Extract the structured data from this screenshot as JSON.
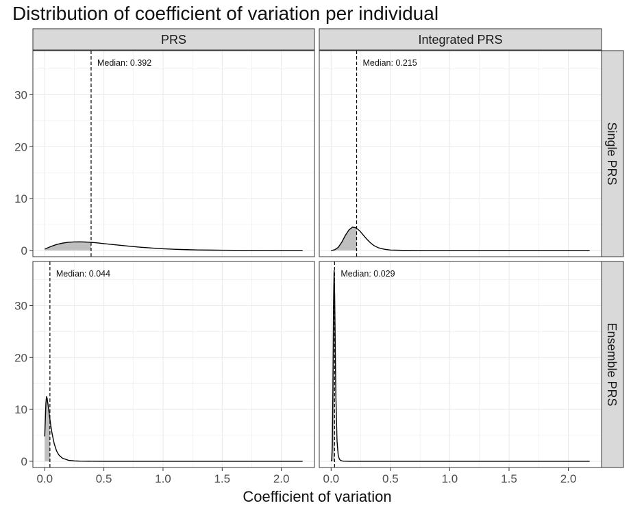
{
  "chart_data": {
    "type": "area",
    "title": "Distribution of coefficient of variation per individual",
    "xlabel": "Coefficient of variation",
    "ylabel": "",
    "xlim": [
      -0.1,
      2.28
    ],
    "ylim": [
      -1.2,
      38.5
    ],
    "x_ticks": [
      0.0,
      0.5,
      1.0,
      1.5,
      2.0
    ],
    "x_tick_labels": [
      "0.0",
      "0.5",
      "1.0",
      "1.5",
      "2.0"
    ],
    "y_ticks": [
      0,
      10,
      20,
      30
    ],
    "y_tick_labels": [
      "0",
      "10",
      "20",
      "30"
    ],
    "column_strips": [
      "PRS",
      "Integrated PRS"
    ],
    "row_strips": [
      "Single PRS",
      "Ensemble PRS"
    ],
    "panels": [
      {
        "column": "PRS",
        "row": "Single PRS",
        "median": 0.392,
        "annotation": "Median: 0.392",
        "x": [
          0.0,
          0.05,
          0.1,
          0.15,
          0.2,
          0.25,
          0.3,
          0.35,
          0.4,
          0.45,
          0.5,
          0.6,
          0.7,
          0.8,
          0.9,
          1.0,
          1.1,
          1.2,
          1.3,
          1.4,
          1.5,
          1.6,
          1.8,
          2.0,
          2.18
        ],
        "density": [
          0.25,
          0.75,
          1.15,
          1.42,
          1.58,
          1.65,
          1.66,
          1.62,
          1.54,
          1.44,
          1.32,
          1.08,
          0.85,
          0.64,
          0.47,
          0.33,
          0.23,
          0.15,
          0.1,
          0.07,
          0.04,
          0.03,
          0.01,
          0.0,
          0.0
        ]
      },
      {
        "column": "Integrated PRS",
        "row": "Single PRS",
        "median": 0.215,
        "annotation": "Median: 0.215",
        "x": [
          0.0,
          0.03,
          0.06,
          0.09,
          0.12,
          0.15,
          0.18,
          0.21,
          0.24,
          0.27,
          0.3,
          0.33,
          0.36,
          0.4,
          0.45,
          0.5,
          0.6,
          0.8,
          1.0,
          1.5,
          2.18
        ],
        "density": [
          0.0,
          0.12,
          0.6,
          1.6,
          2.9,
          3.95,
          4.5,
          4.35,
          3.8,
          3.0,
          2.2,
          1.5,
          0.95,
          0.5,
          0.22,
          0.08,
          0.02,
          0.0,
          0.0,
          0.0,
          0.0
        ]
      },
      {
        "column": "PRS",
        "row": "Ensemble PRS",
        "median": 0.044,
        "annotation": "Median: 0.044",
        "x": [
          0.0,
          0.005,
          0.01,
          0.015,
          0.02,
          0.03,
          0.04,
          0.05,
          0.06,
          0.08,
          0.1,
          0.12,
          0.15,
          0.2,
          0.25,
          0.3,
          0.4,
          0.5,
          0.7,
          1.0,
          1.5,
          2.18
        ],
        "density": [
          4.8,
          8.0,
          11.2,
          12.5,
          12.2,
          10.6,
          8.8,
          7.1,
          5.6,
          3.4,
          2.0,
          1.2,
          0.6,
          0.2,
          0.07,
          0.03,
          0.01,
          0.0,
          0.0,
          0.0,
          0.0,
          0.0
        ]
      },
      {
        "column": "Integrated PRS",
        "row": "Ensemble PRS",
        "median": 0.029,
        "annotation": "Median: 0.029",
        "x": [
          0.0,
          0.005,
          0.01,
          0.015,
          0.02,
          0.025,
          0.03,
          0.035,
          0.04,
          0.05,
          0.06,
          0.07,
          0.08,
          0.1,
          0.15,
          0.3,
          1.0,
          2.18
        ],
        "density": [
          0.0,
          0.3,
          3.0,
          14.0,
          30.0,
          36.8,
          32.0,
          22.0,
          12.5,
          3.8,
          1.1,
          0.4,
          0.15,
          0.03,
          0.0,
          0.0,
          0.0,
          0.0
        ]
      }
    ]
  },
  "colors": {
    "strip_fill": "#d9d9d9",
    "panel_border": "#333333",
    "grid": "#ebebeb",
    "area_fill": "#bfbfbf",
    "line": "#000000"
  }
}
